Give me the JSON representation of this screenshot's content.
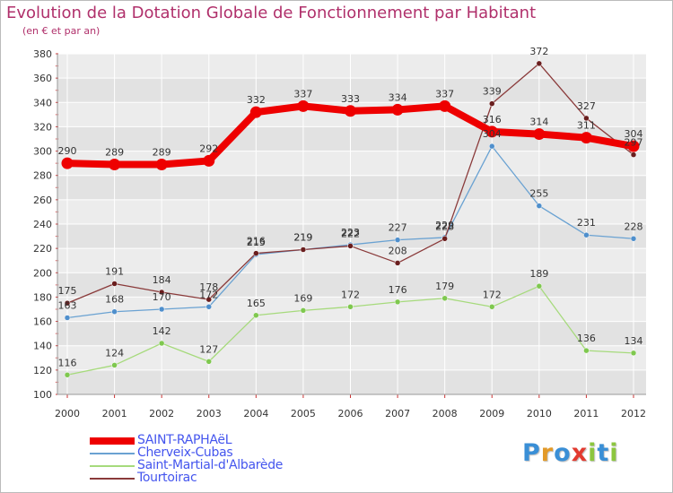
{
  "title": "Evolution de la Dotation Globale de Fonctionnement par Habitant",
  "subtitle": "(en € et par an)",
  "logo": {
    "letters": [
      "P",
      "r",
      "o",
      "x",
      "i",
      "t",
      "i"
    ],
    "colors": [
      "#3a8fd6",
      "#e39a28",
      "#3a8fd6",
      "#e23a2f",
      "#8cc63f",
      "#3a8fd6",
      "#8cc63f"
    ]
  },
  "chart_data": {
    "type": "line",
    "title": "Evolution de la Dotation Globale de Fonctionnement par Habitant",
    "subtitle": "(en € et par an)",
    "xlabel": "",
    "ylabel": "",
    "x": [
      "2000",
      "2001",
      "2002",
      "2003",
      "2004",
      "2005",
      "2006",
      "2007",
      "2008",
      "2009",
      "2010",
      "2011",
      "2012"
    ],
    "ylim": [
      100,
      380
    ],
    "yticks": [
      "100",
      "120",
      "140",
      "160",
      "180",
      "200",
      "220",
      "240",
      "260",
      "280",
      "300",
      "320",
      "340",
      "360",
      "380"
    ],
    "grid": true,
    "legend_position": "bottom-left",
    "series": [
      {
        "name": "SAINT-RAPHAëL",
        "values": [
          290,
          289,
          289,
          292,
          332,
          337,
          333,
          334,
          337,
          316,
          314,
          311,
          304
        ],
        "labels": [
          "290",
          "289",
          "289",
          "292",
          "332",
          "337",
          "333",
          "334",
          "337",
          "316",
          "314",
          "311",
          "304"
        ],
        "color": "#ee0000",
        "marker": "#ee0000",
        "width": 8
      },
      {
        "name": "Cherveix-Cubas",
        "values": [
          163,
          168,
          170,
          172,
          215,
          219,
          223,
          227,
          229,
          304,
          255,
          231,
          228
        ],
        "labels": [
          "163",
          "168",
          "170",
          "172",
          "215",
          "219",
          "223",
          "227",
          "229",
          "304",
          "255",
          "231",
          "228"
        ],
        "color": "#6aa2d2",
        "marker": "#4f8fcc",
        "width": 1.3
      },
      {
        "name": "Saint-Martial-d'Albarède",
        "values": [
          116,
          124,
          142,
          127,
          165,
          169,
          172,
          176,
          179,
          172,
          189,
          136,
          134
        ],
        "labels": [
          "116",
          "124",
          "142",
          "127",
          "165",
          "169",
          "172",
          "176",
          "179",
          "172",
          "189",
          "136",
          "134"
        ],
        "color": "#a6da7c",
        "marker": "#7fc84f",
        "width": 1.3
      },
      {
        "name": "Tourtoirac",
        "values": [
          175,
          191,
          184,
          178,
          216,
          219,
          222,
          208,
          228,
          339,
          372,
          327,
          297
        ],
        "labels": [
          "175",
          "191",
          "184",
          "178",
          "216",
          "219",
          "222",
          "208",
          "228",
          "339",
          "372",
          "327",
          "297"
        ],
        "color": "#8a3a3a",
        "marker": "#6a1e1e",
        "width": 1.3
      }
    ]
  }
}
